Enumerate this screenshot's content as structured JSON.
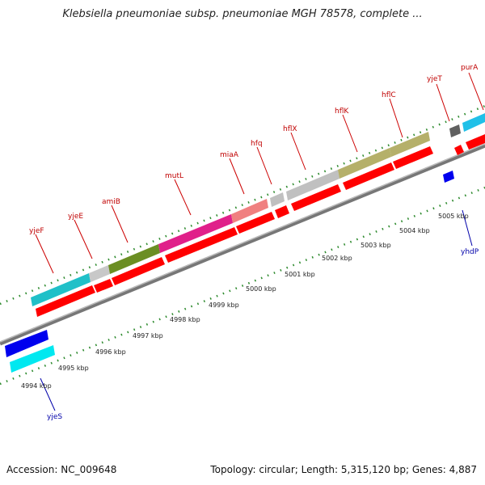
{
  "header": {
    "title": "Klebsiella pneumoniae subsp. pneumoniae MGH 78578, complete ..."
  },
  "footer": {
    "accession": "Accession: NC_009648",
    "summary": "Topology: circular; Length: 5,315,120 bp; Genes: 4,887"
  },
  "genes_top": [
    "yjeF",
    "yjeE",
    "amiB",
    "mutL",
    "miaA",
    "hfq",
    "hflX",
    "hflK",
    "hflC",
    "yjeT",
    "purA"
  ],
  "genes_bottom": [
    "yjeS",
    "yhdP"
  ],
  "scale": [
    "4994 kbp",
    "4995 kbp",
    "4996 kbp",
    "4997 kbp",
    "4998 kbp",
    "4999 kbp",
    "5000 kbp",
    "5001 kbp",
    "5002 kbp",
    "5003 kbp",
    "5004 kbp",
    "5005 kbp"
  ],
  "colors": {
    "cds_red": "#ff0000",
    "yjeF": "#20c0c8",
    "yjeE": "#c0c0c0",
    "amiB": "#6b8e23",
    "mutL": "#e0208a",
    "miaA": "#f08080",
    "hfq": "#c0c0c0",
    "hflX": "#c0c0c0",
    "hflKC": "#b5b06a",
    "yjeT": "#606060",
    "purA": "#20c0e8",
    "yjeS": "#0000ff",
    "yjeS_band": "#00e8f0",
    "tick": "#2d8a2d"
  }
}
